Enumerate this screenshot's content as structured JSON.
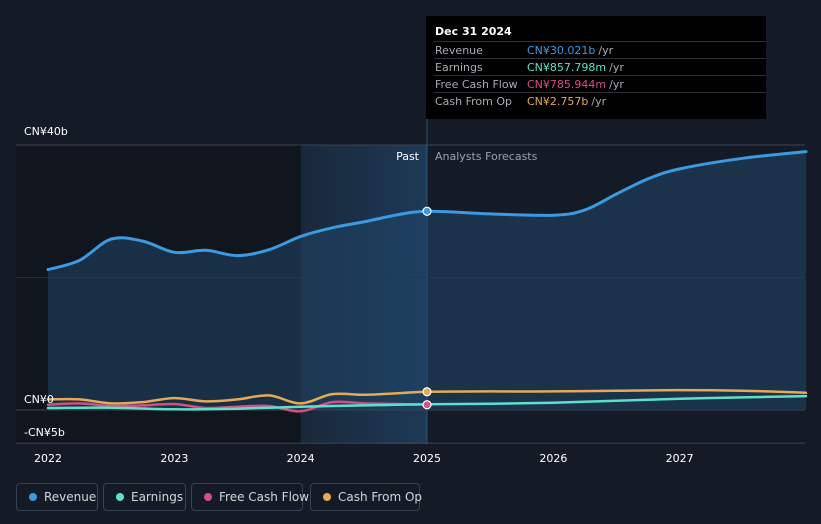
{
  "chart_data": {
    "type": "line",
    "y_axis": {
      "ylim": [
        -5,
        40
      ],
      "tick_labels": [
        "CN¥40b",
        "CN¥0",
        "-CN¥5b"
      ],
      "ticks": [
        40,
        0,
        -5
      ]
    },
    "x_axis": {
      "tick_labels": [
        "2022",
        "2023",
        "2024",
        "2025",
        "2026",
        "2027"
      ],
      "ticks": [
        2022,
        2023,
        2024,
        2025,
        2026,
        2027
      ],
      "xlim": [
        2021.8,
        2028.0
      ]
    },
    "divider": {
      "x": 2025.0,
      "past_label": "Past",
      "forecast_label": "Analysts Forecasts"
    },
    "grid": true,
    "series": [
      {
        "name": "Revenue",
        "color": "#3b9ae1",
        "unit": "b",
        "x": [
          2022.0,
          2022.25,
          2022.5,
          2022.75,
          2023.0,
          2023.25,
          2023.5,
          2023.75,
          2024.0,
          2024.25,
          2024.5,
          2024.75,
          2025.0,
          2025.5,
          2026.0,
          2026.25,
          2026.5,
          2026.75,
          2027.0,
          2027.5,
          2028.0
        ],
        "values": [
          21.2,
          22.6,
          25.8,
          25.5,
          23.8,
          24.1,
          23.3,
          24.2,
          26.2,
          27.5,
          28.4,
          29.4,
          30.0,
          29.6,
          29.4,
          30.2,
          32.6,
          34.9,
          36.4,
          38.0,
          39.0
        ]
      },
      {
        "name": "Earnings",
        "color": "#5de0c6",
        "unit": "b",
        "x": [
          2022.0,
          2022.5,
          2023.0,
          2023.5,
          2024.0,
          2024.5,
          2025.0,
          2025.5,
          2026.0,
          2026.5,
          2027.0,
          2027.5,
          2028.0
        ],
        "values": [
          0.3,
          0.35,
          0.1,
          0.2,
          0.5,
          0.7,
          0.86,
          0.95,
          1.1,
          1.4,
          1.7,
          1.9,
          2.1
        ]
      },
      {
        "name": "Free Cash Flow",
        "color": "#d44f86",
        "unit": "b",
        "x": [
          2022.0,
          2022.25,
          2022.5,
          2022.75,
          2023.0,
          2023.25,
          2023.5,
          2023.75,
          2024.0,
          2024.25,
          2024.5,
          2024.75,
          2025.0
        ],
        "values": [
          0.8,
          1.0,
          0.6,
          0.7,
          0.9,
          0.3,
          0.5,
          0.6,
          -0.2,
          1.2,
          1.0,
          0.9,
          0.79
        ]
      },
      {
        "name": "Cash From Op",
        "color": "#e6a954",
        "unit": "b",
        "x": [
          2022.0,
          2022.25,
          2022.5,
          2022.75,
          2023.0,
          2023.25,
          2023.5,
          2023.75,
          2024.0,
          2024.25,
          2024.5,
          2024.75,
          2025.0,
          2025.5,
          2026.0,
          2026.5,
          2027.0,
          2027.5,
          2028.0
        ],
        "values": [
          1.6,
          1.6,
          1.0,
          1.2,
          1.8,
          1.3,
          1.6,
          2.2,
          1.0,
          2.4,
          2.3,
          2.5,
          2.76,
          2.8,
          2.8,
          2.9,
          3.0,
          2.9,
          2.6
        ]
      }
    ]
  },
  "tooltip": {
    "date": "Dec 31 2024",
    "rows": [
      {
        "label": "Revenue",
        "value": "CN¥30.021b",
        "unit": "/yr",
        "color": "#3b9ae1"
      },
      {
        "label": "Earnings",
        "value": "CN¥857.798m",
        "unit": "/yr",
        "color": "#5de0c6"
      },
      {
        "label": "Free Cash Flow",
        "value": "CN¥785.944m",
        "unit": "/yr",
        "color": "#d44f86"
      },
      {
        "label": "Cash From Op",
        "value": "CN¥2.757b",
        "unit": "/yr",
        "color": "#e6a954"
      }
    ]
  },
  "legend": [
    {
      "label": "Revenue",
      "color": "#3b9ae1"
    },
    {
      "label": "Earnings",
      "color": "#5de0c6"
    },
    {
      "label": "Free Cash Flow",
      "color": "#d44f86"
    },
    {
      "label": "Cash From Op",
      "color": "#e6a954"
    }
  ]
}
